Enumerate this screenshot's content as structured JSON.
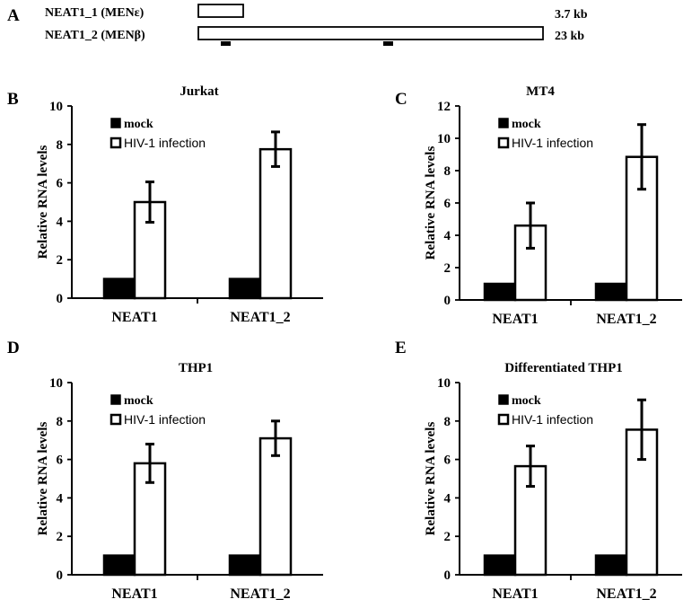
{
  "panel_a": {
    "letter": "A",
    "transcripts": [
      {
        "label": "NEAT1_1 (MENε)",
        "size": "3.7 kb",
        "length_kb": 3.7
      },
      {
        "label": "NEAT1_2 (MENβ)",
        "size": "23 kb",
        "length_kb": 23
      }
    ]
  },
  "colors": {
    "mock": "#000000",
    "infection": "#ffffff",
    "axis": "#000000"
  },
  "chart_data": [
    {
      "panel": "B",
      "type": "bar",
      "title": "Jurkat",
      "ylabel": "Relative RNA levels",
      "xlabel": "",
      "ylim": [
        0,
        10
      ],
      "yticks": [
        "0",
        "2",
        "4",
        "6",
        "8",
        "10"
      ],
      "categories": [
        "NEAT1",
        "NEAT1_2"
      ],
      "legend": [
        "mock",
        "HIV-1 infection"
      ],
      "legend_position": "top-left",
      "series": [
        {
          "name": "mock",
          "values": [
            1,
            1
          ],
          "errors": [
            0,
            0
          ]
        },
        {
          "name": "HIV-1 infection",
          "values": [
            5.0,
            7.75
          ],
          "errors": [
            1.05,
            0.9
          ]
        }
      ]
    },
    {
      "panel": "C",
      "type": "bar",
      "title": "MT4",
      "ylabel": "Relative RNA levels",
      "xlabel": "",
      "ylim": [
        0,
        12
      ],
      "yticks": [
        "0",
        "2",
        "4",
        "6",
        "8",
        "10",
        "12"
      ],
      "categories": [
        "NEAT1",
        "NEAT1_2"
      ],
      "legend": [
        "mock",
        "HIV-1 infection"
      ],
      "legend_position": "top-left",
      "series": [
        {
          "name": "mock",
          "values": [
            1,
            1
          ],
          "errors": [
            0,
            0
          ]
        },
        {
          "name": "HIV-1 infection",
          "values": [
            4.6,
            8.85
          ],
          "errors": [
            1.4,
            2.0
          ]
        }
      ]
    },
    {
      "panel": "D",
      "type": "bar",
      "title": "THP1",
      "ylabel": "Relative RNA levels",
      "xlabel": "",
      "ylim": [
        0,
        10
      ],
      "yticks": [
        "0",
        "2",
        "4",
        "6",
        "8",
        "10"
      ],
      "categories": [
        "NEAT1",
        "NEAT1_2"
      ],
      "legend": [
        "mock",
        "HIV-1 infection"
      ],
      "legend_position": "top-left",
      "series": [
        {
          "name": "mock",
          "values": [
            1,
            1
          ],
          "errors": [
            0,
            0
          ]
        },
        {
          "name": "HIV-1 infection",
          "values": [
            5.8,
            7.1
          ],
          "errors": [
            1.0,
            0.9
          ]
        }
      ]
    },
    {
      "panel": "E",
      "type": "bar",
      "title": "Differentiated THP1",
      "ylabel": "Relative RNA levels",
      "xlabel": "",
      "ylim": [
        0,
        10
      ],
      "yticks": [
        "0",
        "2",
        "4",
        "6",
        "8",
        "10"
      ],
      "categories": [
        "NEAT1",
        "NEAT1_2"
      ],
      "legend": [
        "mock",
        "HIV-1 infection"
      ],
      "legend_position": "top-left",
      "series": [
        {
          "name": "mock",
          "values": [
            1,
            1
          ],
          "errors": [
            0,
            0
          ]
        },
        {
          "name": "HIV-1 infection",
          "values": [
            5.65,
            7.55
          ],
          "errors": [
            1.05,
            1.55
          ]
        }
      ]
    }
  ]
}
